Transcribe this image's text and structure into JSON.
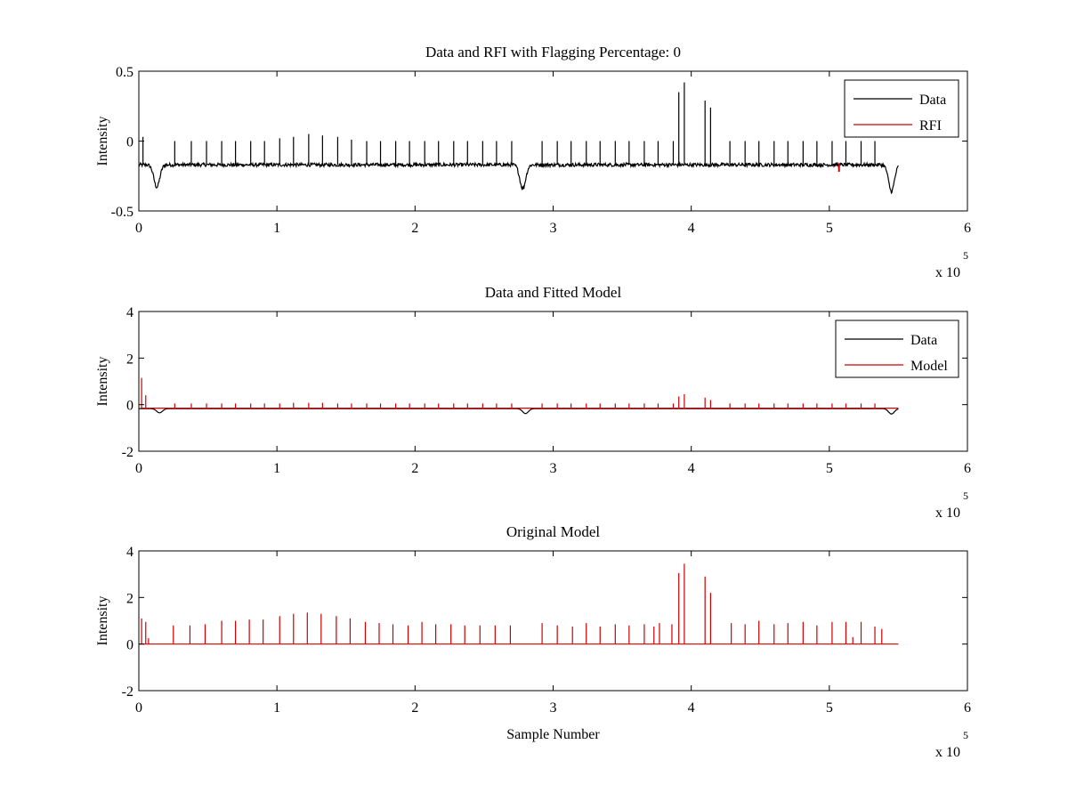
{
  "colors": {
    "data": "#000000",
    "red": "#cc0000",
    "axes": "#000000",
    "background": "#ffffff"
  },
  "chart_data": [
    {
      "type": "line",
      "title": "Data and RFI with Flagging Percentage: 0",
      "ylabel": "Intensity",
      "xlabel": "",
      "x_exponent_label": "x 10",
      "x_exponent_power": "5",
      "xlim": [
        0,
        6
      ],
      "ylim": [
        -0.5,
        0.5
      ],
      "xticks": [
        "0",
        "1",
        "2",
        "3",
        "4",
        "5",
        "6"
      ],
      "yticks": [
        "-0.5",
        "0",
        "0.5"
      ],
      "legend": {
        "position": "top-right",
        "entries": [
          "Data",
          "RFI"
        ]
      },
      "series": [
        {
          "name": "Data",
          "color": "#000000",
          "baseline": -0.17,
          "noise": 0.025,
          "x_range": [
            0,
            5.5
          ],
          "dips": [
            [
              0.13,
              -0.33
            ],
            [
              2.78,
              -0.34
            ],
            [
              5.45,
              -0.36
            ]
          ],
          "spikes": [
            [
              0.03,
              0.03
            ],
            [
              0.26,
              0.0
            ],
            [
              0.38,
              0.0
            ],
            [
              0.49,
              0.0
            ],
            [
              0.6,
              0.0
            ],
            [
              0.7,
              0.0
            ],
            [
              0.81,
              0.0
            ],
            [
              0.91,
              0.0
            ],
            [
              1.02,
              0.02
            ],
            [
              1.12,
              0.03
            ],
            [
              1.23,
              0.05
            ],
            [
              1.33,
              0.04
            ],
            [
              1.44,
              0.03
            ],
            [
              1.54,
              0.01
            ],
            [
              1.65,
              0.0
            ],
            [
              1.75,
              0.0
            ],
            [
              1.86,
              0.0
            ],
            [
              1.96,
              0.0
            ],
            [
              2.07,
              0.0
            ],
            [
              2.17,
              0.0
            ],
            [
              2.28,
              0.0
            ],
            [
              2.38,
              0.0
            ],
            [
              2.49,
              0.0
            ],
            [
              2.59,
              0.0
            ],
            [
              2.7,
              0.0
            ],
            [
              2.92,
              0.0
            ],
            [
              3.03,
              0.0
            ],
            [
              3.13,
              0.0
            ],
            [
              3.24,
              0.0
            ],
            [
              3.34,
              0.0
            ],
            [
              3.45,
              0.0
            ],
            [
              3.55,
              0.0
            ],
            [
              3.66,
              0.0
            ],
            [
              3.76,
              0.0
            ],
            [
              3.87,
              0.0
            ],
            [
              3.91,
              0.35
            ],
            [
              3.95,
              0.42
            ],
            [
              4.1,
              0.29
            ],
            [
              4.14,
              0.24
            ],
            [
              4.28,
              0.0
            ],
            [
              4.39,
              0.0
            ],
            [
              4.49,
              0.0
            ],
            [
              4.6,
              0.0
            ],
            [
              4.7,
              0.0
            ],
            [
              4.81,
              0.0
            ],
            [
              4.91,
              0.0
            ],
            [
              5.02,
              0.0
            ],
            [
              5.12,
              0.0
            ],
            [
              5.23,
              0.0
            ],
            [
              5.33,
              0.0
            ]
          ]
        },
        {
          "name": "RFI",
          "color": "#cc0000",
          "points": [
            [
              5.07,
              -0.22,
              -0.16
            ]
          ]
        }
      ]
    },
    {
      "type": "line",
      "title": "Data and Fitted Model",
      "ylabel": "Intensity",
      "xlabel": "",
      "x_exponent_label": "x 10",
      "x_exponent_power": "5",
      "xlim": [
        0,
        6
      ],
      "ylim": [
        -2,
        4
      ],
      "xticks": [
        "0",
        "1",
        "2",
        "3",
        "4",
        "5",
        "6"
      ],
      "yticks": [
        "-2",
        "0",
        "2",
        "4"
      ],
      "legend": {
        "position": "top-right",
        "entries": [
          "Data",
          "Model"
        ]
      },
      "series": [
        {
          "name": "Data",
          "color": "#000000",
          "baseline": -0.17,
          "x_range": [
            0,
            5.5
          ],
          "dips": [
            [
              0.15,
              -0.35
            ],
            [
              2.8,
              -0.38
            ],
            [
              5.45,
              -0.4
            ]
          ]
        },
        {
          "name": "Model",
          "color": "#cc0000",
          "baseline": -0.15,
          "x_range": [
            0.02,
            5.5
          ],
          "spikes": [
            [
              0.02,
              1.15
            ],
            [
              0.05,
              0.4
            ],
            [
              0.26,
              0.05
            ],
            [
              0.38,
              0.05
            ],
            [
              0.49,
              0.05
            ],
            [
              0.6,
              0.05
            ],
            [
              0.7,
              0.05
            ],
            [
              0.81,
              0.05
            ],
            [
              0.91,
              0.05
            ],
            [
              1.02,
              0.05
            ],
            [
              1.12,
              0.08
            ],
            [
              1.23,
              0.08
            ],
            [
              1.33,
              0.08
            ],
            [
              1.44,
              0.05
            ],
            [
              1.54,
              0.05
            ],
            [
              1.65,
              0.05
            ],
            [
              1.75,
              0.05
            ],
            [
              1.86,
              0.05
            ],
            [
              1.96,
              0.05
            ],
            [
              2.07,
              0.05
            ],
            [
              2.17,
              0.05
            ],
            [
              2.28,
              0.05
            ],
            [
              2.38,
              0.05
            ],
            [
              2.49,
              0.05
            ],
            [
              2.59,
              0.05
            ],
            [
              2.7,
              0.05
            ],
            [
              2.92,
              0.05
            ],
            [
              3.03,
              0.05
            ],
            [
              3.13,
              0.05
            ],
            [
              3.24,
              0.05
            ],
            [
              3.34,
              0.05
            ],
            [
              3.45,
              0.05
            ],
            [
              3.55,
              0.05
            ],
            [
              3.66,
              0.05
            ],
            [
              3.76,
              0.05
            ],
            [
              3.87,
              0.05
            ],
            [
              3.91,
              0.35
            ],
            [
              3.95,
              0.45
            ],
            [
              4.1,
              0.3
            ],
            [
              4.14,
              0.2
            ],
            [
              4.28,
              0.05
            ],
            [
              4.39,
              0.05
            ],
            [
              4.49,
              0.05
            ],
            [
              4.6,
              0.05
            ],
            [
              4.7,
              0.05
            ],
            [
              4.81,
              0.05
            ],
            [
              4.91,
              0.05
            ],
            [
              5.02,
              0.05
            ],
            [
              5.12,
              0.05
            ],
            [
              5.23,
              0.05
            ],
            [
              5.33,
              0.05
            ]
          ]
        }
      ]
    },
    {
      "type": "line",
      "title": "Original Model",
      "ylabel": "Intensity",
      "xlabel": "Sample Number",
      "x_exponent_label": "x 10",
      "x_exponent_power": "5",
      "xlim": [
        0,
        6
      ],
      "ylim": [
        -2,
        4
      ],
      "xticks": [
        "0",
        "1",
        "2",
        "3",
        "4",
        "5",
        "6"
      ],
      "yticks": [
        "-2",
        "0",
        "2",
        "4"
      ],
      "legend": null,
      "series": [
        {
          "name": "",
          "color": "#cc0000",
          "baseline": 0,
          "x_range": [
            0,
            5.5
          ],
          "spikes": [
            [
              0.02,
              1.1
            ],
            [
              0.05,
              0.95
            ],
            [
              0.07,
              0.25
            ],
            [
              0.25,
              0.8
            ],
            [
              0.37,
              0.8
            ],
            [
              0.48,
              0.85
            ],
            [
              0.6,
              1.0
            ],
            [
              0.7,
              1.0
            ],
            [
              0.8,
              1.05
            ],
            [
              0.9,
              1.05
            ],
            [
              1.02,
              1.2
            ],
            [
              1.12,
              1.3
            ],
            [
              1.22,
              1.35
            ],
            [
              1.32,
              1.3
            ],
            [
              1.43,
              1.2
            ],
            [
              1.53,
              1.1
            ],
            [
              1.64,
              0.95
            ],
            [
              1.74,
              0.9
            ],
            [
              1.84,
              0.85
            ],
            [
              1.95,
              0.8
            ],
            [
              2.05,
              0.95
            ],
            [
              2.15,
              0.85
            ],
            [
              2.26,
              0.85
            ],
            [
              2.36,
              0.8
            ],
            [
              2.47,
              0.8
            ],
            [
              2.58,
              0.8
            ],
            [
              2.69,
              0.8
            ],
            [
              2.92,
              0.9
            ],
            [
              3.03,
              0.8
            ],
            [
              3.14,
              0.75
            ],
            [
              3.24,
              0.9
            ],
            [
              3.34,
              0.75
            ],
            [
              3.45,
              0.85
            ],
            [
              3.55,
              0.8
            ],
            [
              3.66,
              0.85
            ],
            [
              3.73,
              0.75
            ],
            [
              3.77,
              0.9
            ],
            [
              3.86,
              0.85
            ],
            [
              3.91,
              3.05
            ],
            [
              3.95,
              3.45
            ],
            [
              4.1,
              2.9
            ],
            [
              4.14,
              2.2
            ],
            [
              4.29,
              0.9
            ],
            [
              4.39,
              0.85
            ],
            [
              4.49,
              1.0
            ],
            [
              4.6,
              0.85
            ],
            [
              4.7,
              0.9
            ],
            [
              4.81,
              0.95
            ],
            [
              4.91,
              0.8
            ],
            [
              5.02,
              0.95
            ],
            [
              5.12,
              0.95
            ],
            [
              5.17,
              0.3
            ],
            [
              5.23,
              0.95
            ],
            [
              5.33,
              0.75
            ],
            [
              5.38,
              0.65
            ]
          ]
        }
      ]
    }
  ]
}
